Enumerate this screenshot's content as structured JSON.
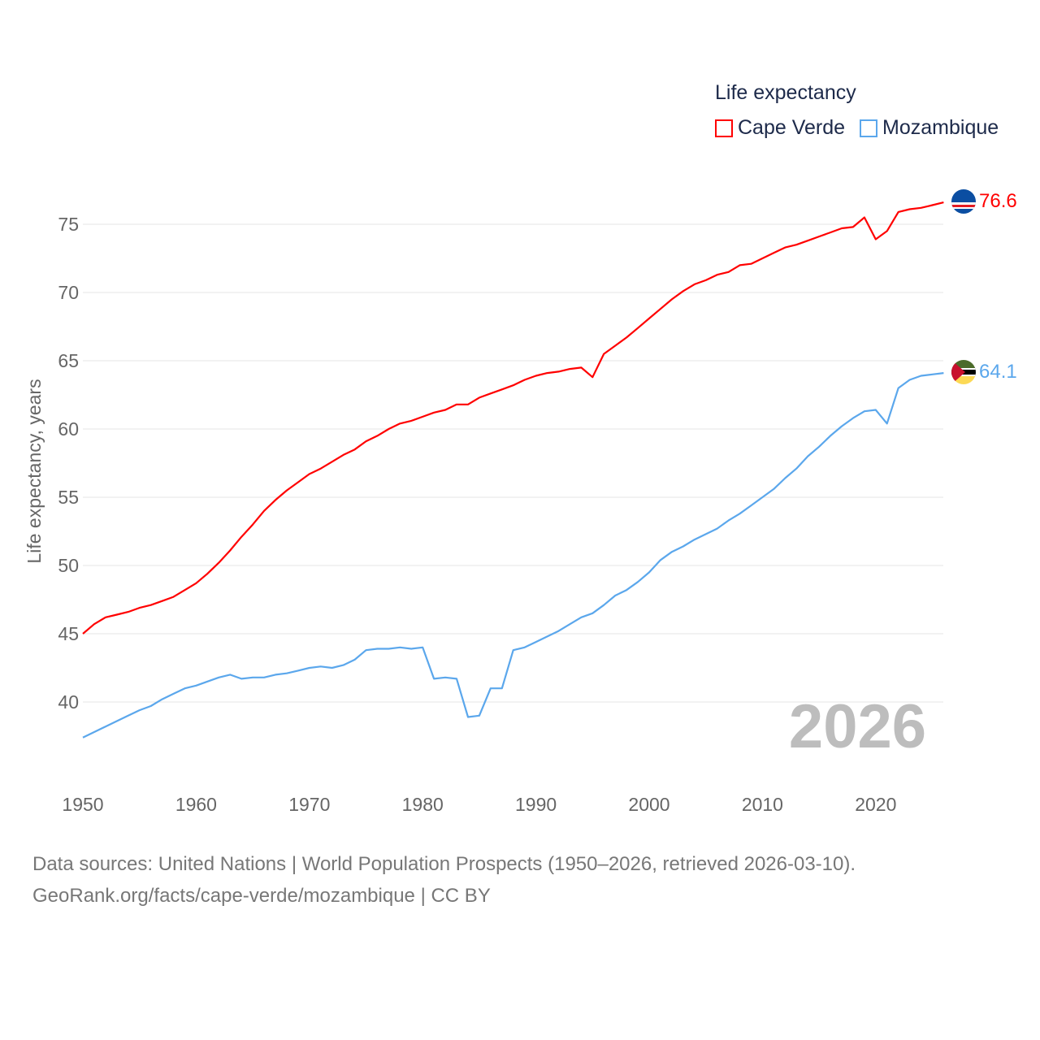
{
  "legend": {
    "title": "Life expectancy",
    "items": [
      {
        "label": "Cape Verde",
        "color": "#ff0000"
      },
      {
        "label": "Mozambique",
        "color": "#5ba7ec"
      }
    ]
  },
  "year_label": "2026",
  "footer": {
    "line1": "Data sources: United Nations | World Population Prospects (1950–2026, retrieved 2026-03-10).",
    "line2": "GeoRank.org/facts/cape-verde/mozambique | CC BY"
  },
  "end_labels": {
    "cape_verde": "76.6",
    "mozambique": "64.1"
  },
  "chart_data": {
    "type": "line",
    "title": "Life expectancy",
    "xlabel": "",
    "ylabel": "Life expectancy, years",
    "xlim": [
      1950,
      2026
    ],
    "ylim": [
      35,
      78
    ],
    "x_ticks": [
      "1950",
      "1960",
      "1970",
      "1980",
      "1990",
      "2000",
      "2010",
      "2020"
    ],
    "y_ticks": [
      "40",
      "45",
      "50",
      "55",
      "60",
      "65",
      "70",
      "75"
    ],
    "grid": true,
    "legend_position": "top-right",
    "x_start": 1950,
    "series": [
      {
        "name": "Cape Verde",
        "color": "#ff0000",
        "values": [
          45.0,
          45.7,
          46.2,
          46.4,
          46.6,
          46.9,
          47.1,
          47.4,
          47.7,
          48.2,
          48.7,
          49.4,
          50.2,
          51.1,
          52.1,
          53.0,
          54.0,
          54.8,
          55.5,
          56.1,
          56.7,
          57.1,
          57.6,
          58.1,
          58.5,
          59.1,
          59.5,
          60.0,
          60.4,
          60.6,
          60.9,
          61.2,
          61.4,
          61.8,
          61.8,
          62.3,
          62.6,
          62.9,
          63.2,
          63.6,
          63.9,
          64.1,
          64.2,
          64.4,
          64.5,
          63.8,
          65.5,
          66.1,
          66.7,
          67.4,
          68.1,
          68.8,
          69.5,
          70.1,
          70.6,
          70.9,
          71.3,
          71.5,
          72.0,
          72.1,
          72.5,
          72.9,
          73.3,
          73.5,
          73.8,
          74.1,
          74.4,
          74.7,
          74.8,
          75.5,
          73.9,
          74.5,
          75.9,
          76.1,
          76.2,
          76.4,
          76.6
        ]
      },
      {
        "name": "Mozambique",
        "color": "#5ba7ec",
        "values": [
          37.4,
          37.8,
          38.2,
          38.6,
          39.0,
          39.4,
          39.7,
          40.2,
          40.6,
          41.0,
          41.2,
          41.5,
          41.8,
          42.0,
          41.7,
          41.8,
          41.8,
          42.0,
          42.1,
          42.3,
          42.5,
          42.6,
          42.5,
          42.7,
          43.1,
          43.8,
          43.9,
          43.9,
          44.0,
          43.9,
          44.0,
          41.7,
          41.8,
          41.7,
          38.9,
          39.0,
          41.0,
          41.0,
          43.8,
          44.0,
          44.4,
          44.8,
          45.2,
          45.7,
          46.2,
          46.5,
          47.1,
          47.8,
          48.2,
          48.8,
          49.5,
          50.4,
          51.0,
          51.4,
          51.9,
          52.3,
          52.7,
          53.3,
          53.8,
          54.4,
          55.0,
          55.6,
          56.4,
          57.1,
          58.0,
          58.7,
          59.5,
          60.2,
          60.8,
          61.3,
          61.4,
          60.4,
          63.0,
          63.6,
          63.9,
          64.0,
          64.1
        ]
      }
    ]
  }
}
